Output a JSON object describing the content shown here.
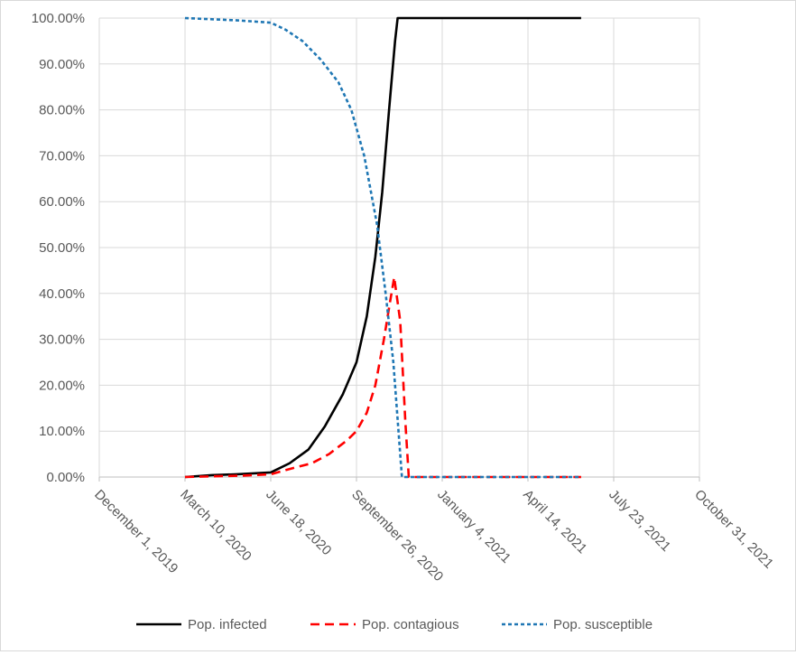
{
  "chart_data": {
    "type": "line",
    "title": "",
    "xlabel": "",
    "ylabel": "",
    "x_axis": {
      "type": "date",
      "min": "2019-12-01",
      "max": "2021-10-31",
      "tick_labels": [
        "December 1, 2019",
        "March 10, 2020",
        "June 18, 2020",
        "September 26, 2020",
        "January 4, 2021",
        "April 14, 2021",
        "July 23, 2021",
        "October 31, 2021"
      ]
    },
    "y_axis": {
      "min": 0,
      "max": 1,
      "tick_labels": [
        "0.00%",
        "10.00%",
        "20.00%",
        "30.00%",
        "40.00%",
        "50.00%",
        "60.00%",
        "70.00%",
        "80.00%",
        "90.00%",
        "100.00%"
      ]
    },
    "gridlines": "both",
    "legend_position": "bottom",
    "series": [
      {
        "name": "Pop. infected",
        "color": "#000000",
        "dash": "solid",
        "points": [
          [
            "2020-03-10",
            0.0
          ],
          [
            "2020-04-10",
            0.004
          ],
          [
            "2020-05-10",
            0.006
          ],
          [
            "2020-06-18",
            0.01
          ],
          [
            "2020-07-10",
            0.03
          ],
          [
            "2020-08-01",
            0.06
          ],
          [
            "2020-08-20",
            0.11
          ],
          [
            "2020-09-10",
            0.18
          ],
          [
            "2020-09-26",
            0.25
          ],
          [
            "2020-10-08",
            0.35
          ],
          [
            "2020-10-18",
            0.48
          ],
          [
            "2020-10-26",
            0.62
          ],
          [
            "2020-11-03",
            0.8
          ],
          [
            "2020-11-10",
            0.95
          ],
          [
            "2020-11-13",
            1.0
          ],
          [
            "2021-06-15",
            1.0
          ]
        ]
      },
      {
        "name": "Pop. contagious",
        "color": "#ff0000",
        "dash": "long-dash",
        "points": [
          [
            "2020-03-10",
            0.0
          ],
          [
            "2020-05-15",
            0.003
          ],
          [
            "2020-06-18",
            0.006
          ],
          [
            "2020-07-15",
            0.02
          ],
          [
            "2020-08-05",
            0.03
          ],
          [
            "2020-08-25",
            0.05
          ],
          [
            "2020-09-15",
            0.08
          ],
          [
            "2020-09-26",
            0.1
          ],
          [
            "2020-10-08",
            0.14
          ],
          [
            "2020-10-18",
            0.2
          ],
          [
            "2020-10-28",
            0.3
          ],
          [
            "2020-11-04",
            0.38
          ],
          [
            "2020-11-09",
            0.435
          ],
          [
            "2020-11-16",
            0.34
          ],
          [
            "2020-11-22",
            0.12
          ],
          [
            "2020-11-26",
            0.0
          ],
          [
            "2021-06-15",
            0.0
          ]
        ]
      },
      {
        "name": "Pop. susceptible",
        "color": "#1f77b4",
        "dash": "short-dash",
        "points": [
          [
            "2020-03-10",
            1.0
          ],
          [
            "2020-05-10",
            0.995
          ],
          [
            "2020-06-18",
            0.99
          ],
          [
            "2020-07-05",
            0.975
          ],
          [
            "2020-07-25",
            0.95
          ],
          [
            "2020-08-15",
            0.91
          ],
          [
            "2020-09-05",
            0.86
          ],
          [
            "2020-09-20",
            0.8
          ],
          [
            "2020-10-05",
            0.7
          ],
          [
            "2020-10-20",
            0.55
          ],
          [
            "2020-10-30",
            0.4
          ],
          [
            "2020-11-08",
            0.25
          ],
          [
            "2020-11-14",
            0.1
          ],
          [
            "2020-11-18",
            0.0
          ],
          [
            "2021-06-15",
            0.0
          ]
        ]
      }
    ]
  }
}
